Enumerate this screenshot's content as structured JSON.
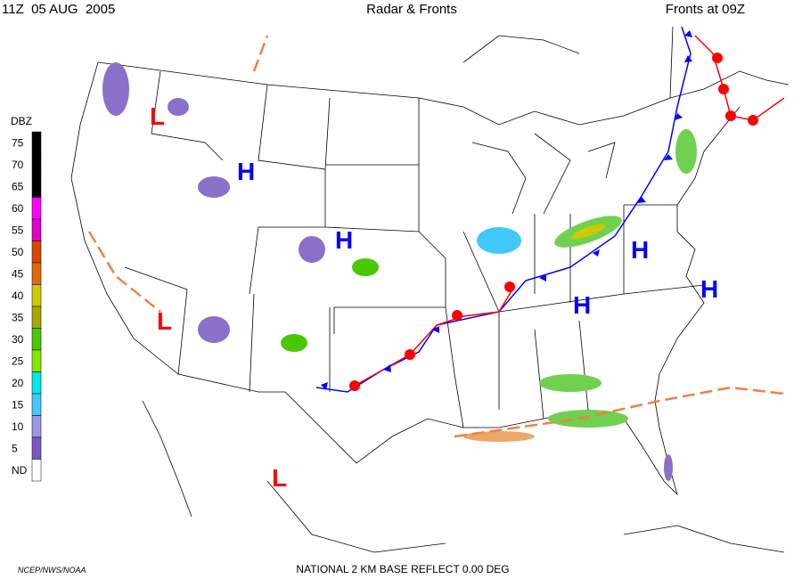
{
  "header": {
    "time": "11Z  05 AUG  2005",
    "title": "Radar & Fronts",
    "fronts_time": "Fronts at 09Z"
  },
  "legend": {
    "title": "DBZ",
    "levels": [
      {
        "label": "75",
        "color": "#000000"
      },
      {
        "label": "70",
        "color": "#000000"
      },
      {
        "label": "65",
        "color": "#000000"
      },
      {
        "label": "60",
        "color": "#ff00ff"
      },
      {
        "label": "55",
        "color": "#e000c8"
      },
      {
        "label": "50",
        "color": "#d84800"
      },
      {
        "label": "45",
        "color": "#e06a00"
      },
      {
        "label": "40",
        "color": "#d0c800"
      },
      {
        "label": "35",
        "color": "#a8a800"
      },
      {
        "label": "30",
        "color": "#48c800"
      },
      {
        "label": "25",
        "color": "#88e800"
      },
      {
        "label": "20",
        "color": "#00e8e8"
      },
      {
        "label": "15",
        "color": "#40c8ff"
      },
      {
        "label": "10",
        "color": "#9898e8"
      },
      {
        "label": "5",
        "color": "#7858c0"
      },
      {
        "label": "ND",
        "color": "#ffffff"
      }
    ]
  },
  "pressure_centers": [
    {
      "label": "L",
      "color": "#ff0000"
    },
    {
      "label": "H",
      "color": "#0000ff"
    },
    {
      "label": "H",
      "color": "#0000ff"
    },
    {
      "label": "L",
      "color": "#ff0000"
    },
    {
      "label": "L",
      "color": "#ff0000"
    },
    {
      "label": "H",
      "color": "#0000ff"
    },
    {
      "label": "H",
      "color": "#0000ff"
    },
    {
      "label": "H",
      "color": "#0000ff"
    }
  ],
  "footer": {
    "credit": "NCEP/NWS/NOAA",
    "product": "NATIONAL 2 KM BASE REFLECT 0.00 DEG"
  }
}
